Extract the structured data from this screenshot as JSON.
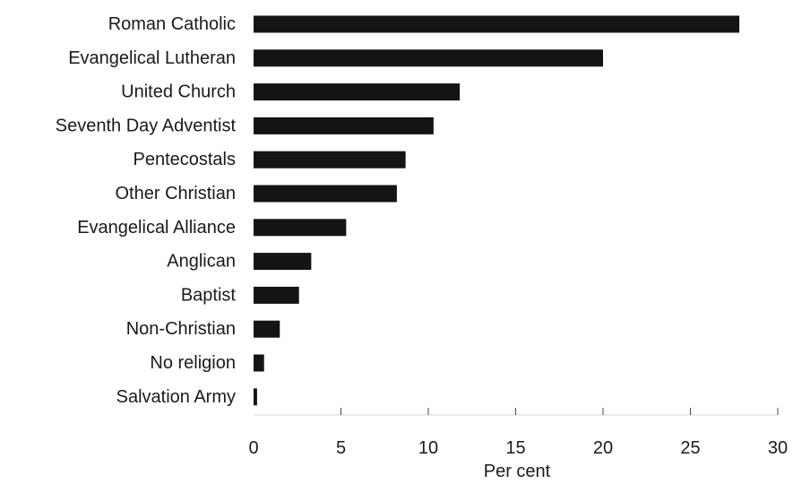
{
  "chart_data": {
    "type": "bar",
    "orientation": "horizontal",
    "title": "",
    "xlabel": "Per cent",
    "ylabel": "",
    "xlim": [
      0,
      30
    ],
    "x_ticks": [
      "0",
      "5",
      "10",
      "15",
      "20",
      "25",
      "30"
    ],
    "grid": false,
    "bar_color": "#141414",
    "categories": [
      "Roman Catholic",
      "Evangelical Lutheran",
      "United Church",
      "Seventh Day Adventist",
      "Pentecostals",
      "Other Christian",
      "Evangelical Alliance",
      "Anglican",
      "Baptist",
      "Non-Christian",
      "No religion",
      "Salvation Army"
    ],
    "values": [
      27.8,
      20.0,
      11.8,
      10.3,
      8.7,
      8.2,
      5.3,
      3.3,
      2.6,
      1.5,
      0.6,
      0.2
    ]
  }
}
